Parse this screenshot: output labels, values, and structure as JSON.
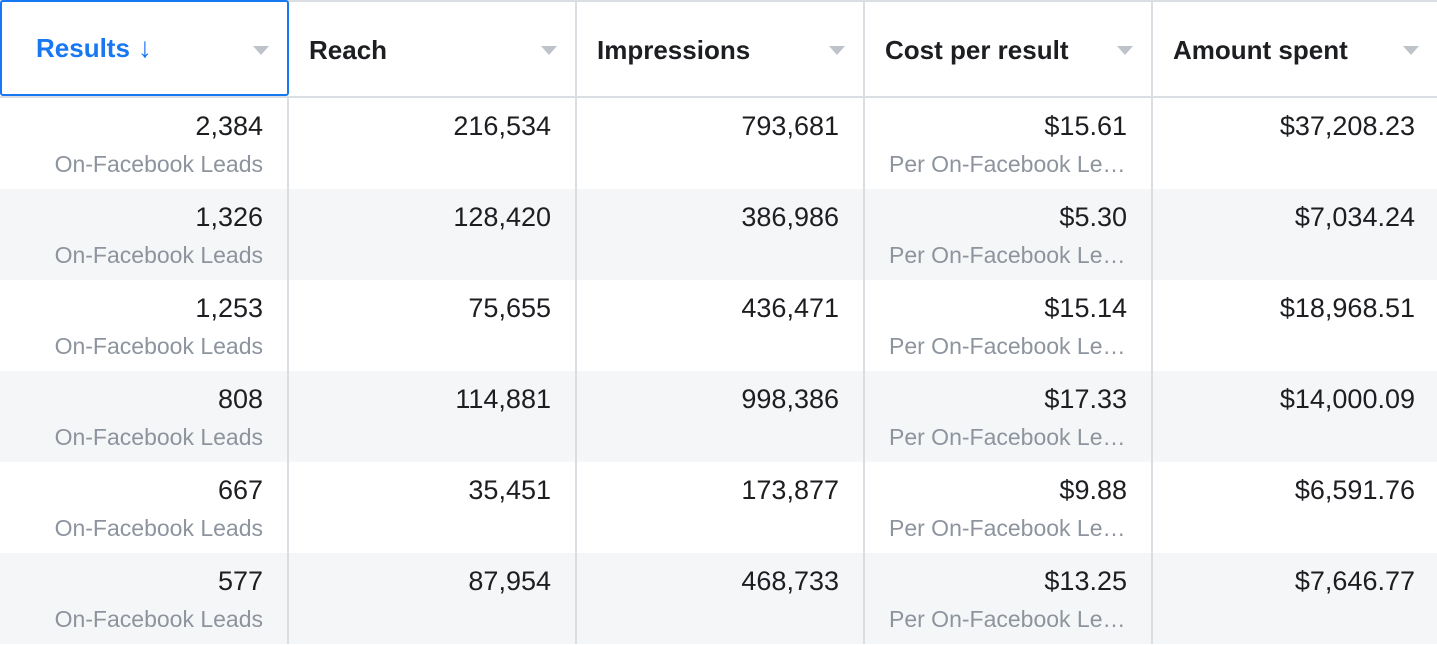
{
  "columns": [
    {
      "label": "Results",
      "sort_icon": "arrow-down-icon",
      "active": true
    },
    {
      "label": "Reach"
    },
    {
      "label": "Impressions"
    },
    {
      "label": "Cost per result"
    },
    {
      "label": "Amount spent"
    }
  ],
  "colors": {
    "accent": "#1877f2",
    "alt_row": "#f5f6f7",
    "border": "#dadde1",
    "muted_text": "#8d949e"
  },
  "rows": [
    {
      "results": "2,384",
      "results_sub": "On-Facebook Leads",
      "reach": "216,534",
      "impressions": "793,681",
      "cost": "$15.61",
      "cost_sub": "Per On-Facebook Le…",
      "spent": "$37,208.23"
    },
    {
      "results": "1,326",
      "results_sub": "On-Facebook Leads",
      "reach": "128,420",
      "impressions": "386,986",
      "cost": "$5.30",
      "cost_sub": "Per On-Facebook Le…",
      "spent": "$7,034.24"
    },
    {
      "results": "1,253",
      "results_sub": "On-Facebook Leads",
      "reach": "75,655",
      "impressions": "436,471",
      "cost": "$15.14",
      "cost_sub": "Per On-Facebook Le…",
      "spent": "$18,968.51"
    },
    {
      "results": "808",
      "results_sub": "On-Facebook Leads",
      "reach": "114,881",
      "impressions": "998,386",
      "cost": "$17.33",
      "cost_sub": "Per On-Facebook Le…",
      "spent": "$14,000.09"
    },
    {
      "results": "667",
      "results_sub": "On-Facebook Leads",
      "reach": "35,451",
      "impressions": "173,877",
      "cost": "$9.88",
      "cost_sub": "Per On-Facebook Le…",
      "spent": "$6,591.76"
    },
    {
      "results": "577",
      "results_sub": "On-Facebook Leads",
      "reach": "87,954",
      "impressions": "468,733",
      "cost": "$13.25",
      "cost_sub": "Per On-Facebook Le…",
      "spent": "$7,646.77"
    }
  ]
}
